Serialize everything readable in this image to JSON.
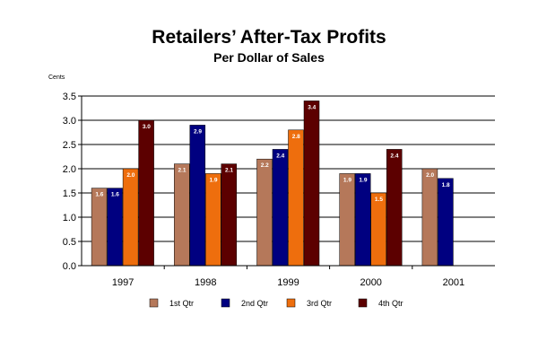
{
  "chart_data": {
    "type": "bar",
    "title": "Retailers’ After-Tax Profits",
    "subtitle": "Per Dollar of Sales",
    "ylabel": "Cents",
    "xlabel": "",
    "categories": [
      "1997",
      "1998",
      "1999",
      "2000",
      "2001"
    ],
    "ylim": [
      0,
      3.5
    ],
    "yticks": [
      "0.0",
      "0.5",
      "1.0",
      "1.5",
      "2.0",
      "2.5",
      "3.0",
      "3.5"
    ],
    "grid": true,
    "legend_position": "bottom",
    "series": [
      {
        "name": "1st Qtr",
        "color": "#b5785a",
        "values": [
          1.6,
          2.1,
          2.2,
          1.9,
          2.0
        ],
        "labels": [
          "1.6",
          "2.1",
          "2.2",
          "1.9",
          "2.0"
        ]
      },
      {
        "name": "2nd Qtr",
        "color": "#000080",
        "values": [
          1.6,
          2.9,
          2.4,
          1.9,
          1.8
        ],
        "labels": [
          "1.6",
          "2.9",
          "2.4",
          "1.9",
          "1.8"
        ]
      },
      {
        "name": "3rd Qtr",
        "color": "#ee6e0d",
        "values": [
          2.0,
          1.9,
          2.8,
          1.5,
          null
        ],
        "labels": [
          "2.0",
          "1.9",
          "2.8",
          "1.5",
          null
        ]
      },
      {
        "name": "4th Qtr",
        "color": "#5c0000",
        "values": [
          3.0,
          2.1,
          3.4,
          2.4,
          null
        ],
        "labels": [
          "3.0",
          "2.1",
          "3.4",
          "2.4",
          null
        ]
      }
    ]
  }
}
